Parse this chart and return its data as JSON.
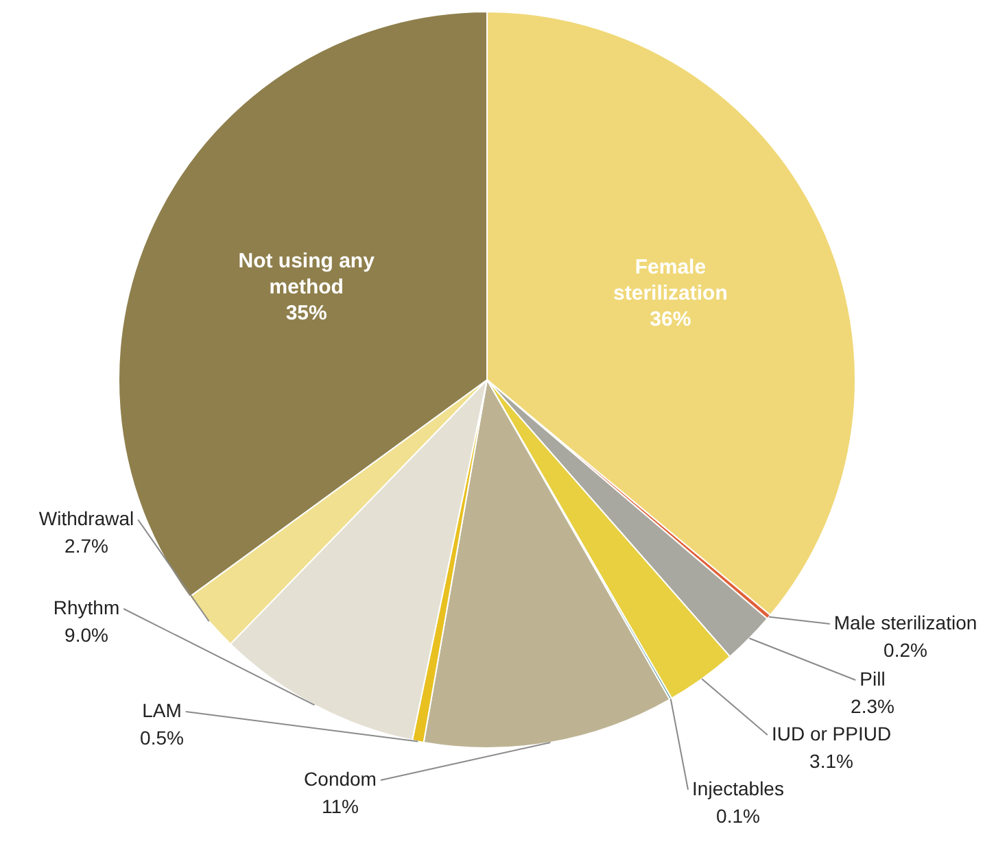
{
  "chart_data": {
    "type": "pie",
    "categories": [
      "Female sterilization",
      "Male sterilization",
      "Pill",
      "IUD or PPIUD",
      "Injectables",
      "Condom",
      "LAM",
      "Rhythm",
      "Withdrawal",
      "Not using any method"
    ],
    "values": [
      36,
      0.2,
      2.3,
      3.1,
      0.1,
      11,
      0.5,
      9.0,
      2.7,
      35
    ],
    "colors": [
      "#f0d878",
      "#e0603a",
      "#a8a8a0",
      "#e8d040",
      "#5a9a9a",
      "#bdb393",
      "#e8c020",
      "#e4e0d4",
      "#f0e090",
      "#8f7f4c"
    ],
    "value_labels": [
      "36%",
      "0.2%",
      "2.3%",
      "3.1%",
      "0.1%",
      "11%",
      "0.5%",
      "9.0%",
      "2.7%",
      "35%"
    ],
    "legend": false
  }
}
